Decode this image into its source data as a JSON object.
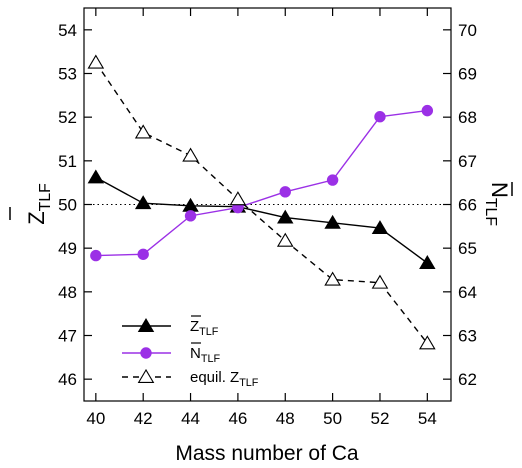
{
  "chart_data": {
    "type": "line",
    "xlabel": "Mass number of Ca",
    "x": [
      40,
      42,
      44,
      46,
      48,
      50,
      52,
      54
    ],
    "xlim": [
      39.5,
      55
    ],
    "xticks": [
      40,
      42,
      44,
      46,
      48,
      50,
      52,
      54
    ],
    "ylabel_left": {
      "main": "Z",
      "sub": "TLF",
      "overline": true
    },
    "ylabel_right": {
      "main": "N",
      "sub": "TLF",
      "overline": true
    },
    "ylim_left": [
      45.5,
      54.5
    ],
    "yticks_left": [
      46,
      47,
      48,
      49,
      50,
      51,
      52,
      53,
      54
    ],
    "ylim_right": [
      61.5,
      70.5
    ],
    "yticks_right": [
      62,
      63,
      64,
      65,
      66,
      67,
      68,
      69,
      70
    ],
    "reference_line": {
      "y": 50,
      "axis": "left",
      "style": "dotted"
    },
    "series": [
      {
        "legend_main": "Z",
        "legend_sub": "TLF",
        "legend_overline": true,
        "axis": "left",
        "marker": "filled-triangle",
        "line": "solid",
        "color": "#000000",
        "values": [
          50.62,
          50.03,
          49.97,
          49.95,
          49.7,
          49.58,
          49.46,
          48.66
        ]
      },
      {
        "legend_main": "N",
        "legend_sub": "TLF",
        "legend_overline": true,
        "axis": "right",
        "marker": "filled-circle",
        "line": "solid",
        "color": "#9b30e6",
        "values": [
          64.83,
          64.86,
          65.74,
          65.93,
          66.29,
          66.56,
          68.01,
          68.15
        ]
      },
      {
        "legend_prefix": "equil. ",
        "legend_main": "Z",
        "legend_sub": "TLF",
        "legend_overline": false,
        "axis": "left",
        "marker": "open-triangle",
        "line": "dashed",
        "color": "#000000",
        "values": [
          53.25,
          51.65,
          51.12,
          50.12,
          49.17,
          48.28,
          48.21,
          46.82
        ]
      }
    ],
    "legend_position": "bottom-left",
    "grid": false
  }
}
